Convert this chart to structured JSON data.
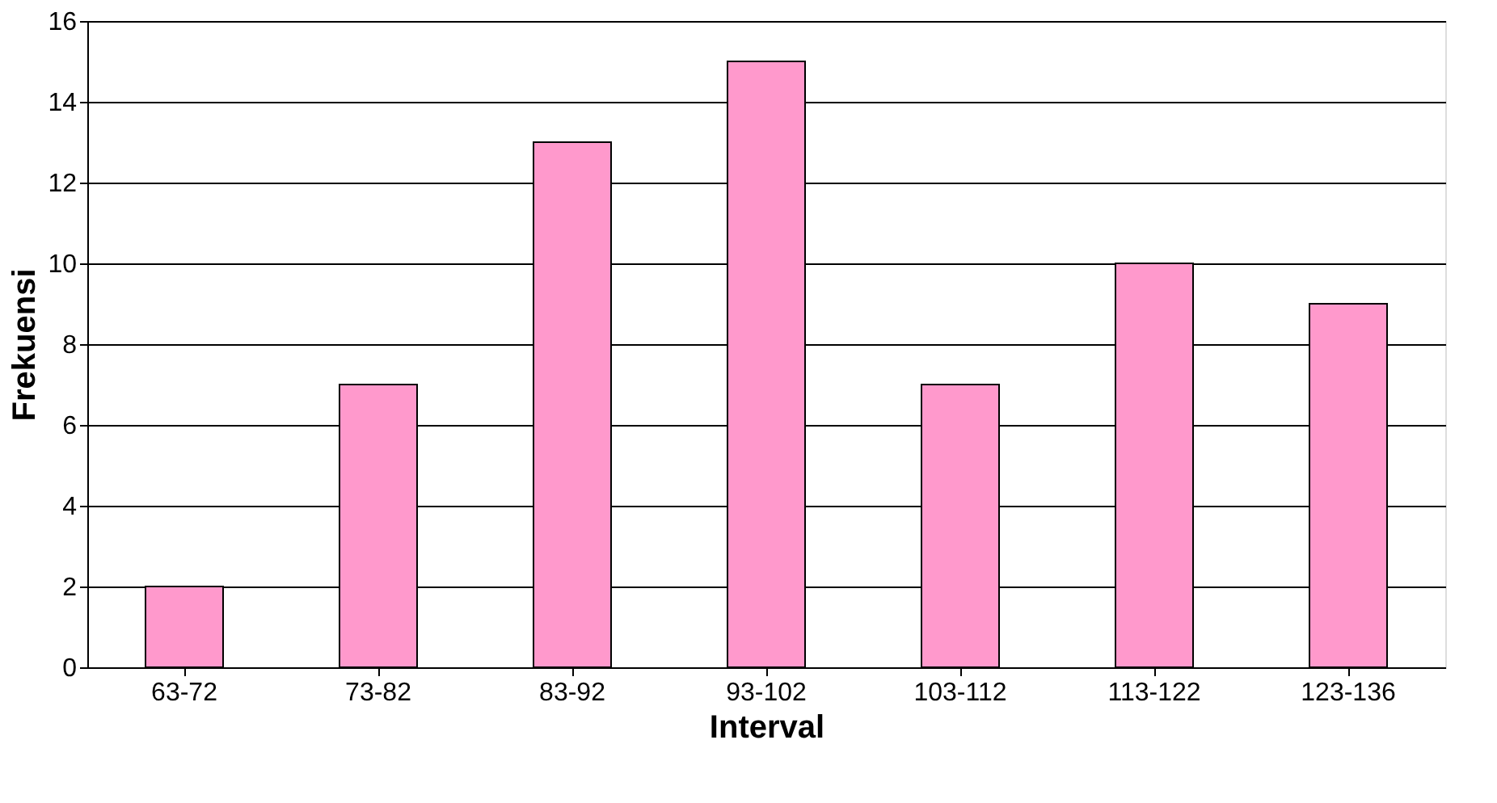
{
  "chart_data": {
    "type": "bar",
    "xlabel": "Interval",
    "ylabel": "Frekuensi",
    "categories": [
      "63-72",
      "73-82",
      "83-92",
      "93-102",
      "103-112",
      "113-122",
      "123-136"
    ],
    "values": [
      2,
      7,
      13,
      15,
      7,
      10,
      9
    ],
    "color": "#ff99cc",
    "ylim": [
      0,
      16
    ],
    "yticks": [
      0,
      2,
      4,
      6,
      8,
      10,
      12,
      14,
      16
    ],
    "grid": "y"
  }
}
